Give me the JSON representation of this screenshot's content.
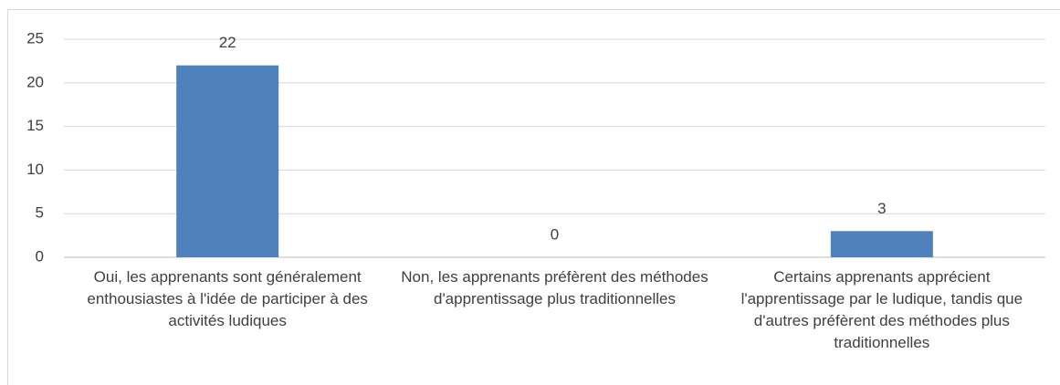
{
  "chart_data": {
    "type": "bar",
    "categories": [
      "Oui, les apprenants sont généralement enthousiastes à l'idée de participer à des activités ludiques",
      "Non, les apprenants préfèrent des méthodes d'apprentissage plus traditionnelles",
      "Certains apprenants apprécient l'apprentissage par le ludique, tandis que d'autres préfèrent des méthodes plus traditionnelles"
    ],
    "values": [
      22,
      0,
      3
    ],
    "color": "#4f81bd",
    "ylim": [
      0,
      25
    ],
    "yticks": [
      0,
      5,
      10,
      15,
      20,
      25
    ],
    "grid": true
  }
}
